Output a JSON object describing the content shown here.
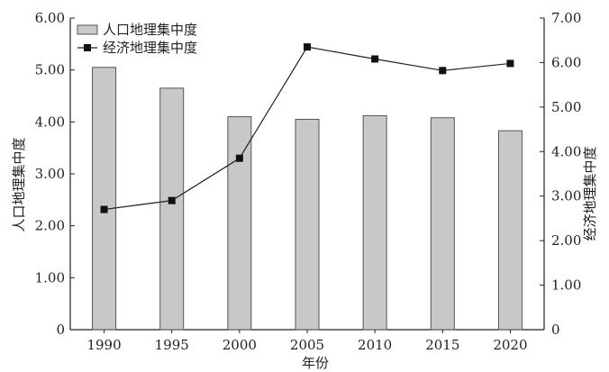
{
  "chart_data": {
    "type": "bar+line",
    "categories": [
      "1990",
      "1995",
      "2000",
      "2005",
      "2010",
      "2015",
      "2020"
    ],
    "series": [
      {
        "name": "人口地理集中度",
        "type": "bar",
        "axis": "left",
        "values": [
          5.05,
          4.65,
          4.1,
          4.05,
          4.12,
          4.08,
          3.83
        ]
      },
      {
        "name": "经济地理集中度",
        "type": "line",
        "axis": "right",
        "values": [
          2.7,
          2.9,
          3.85,
          6.35,
          6.08,
          5.82,
          5.98
        ]
      }
    ],
    "xlabel": "年份",
    "ylabel_left": "人口地理集中度",
    "ylabel_right": "经济地理集中度",
    "ylim_left": [
      0,
      6
    ],
    "ylim_right": [
      0,
      7
    ],
    "yticks_left": [
      "0",
      "1.00",
      "2.00",
      "3.00",
      "4.00",
      "5.00",
      "6.00"
    ],
    "yticks_right": [
      "0",
      "1.00",
      "2.00",
      "3.00",
      "4.00",
      "5.00",
      "6.00",
      "7.00"
    ],
    "grid": false,
    "legend": "top-left",
    "colors": {
      "bar_fill": "#c8c8c8",
      "bar_stroke": "#555555",
      "line": "#222222",
      "marker": "#111111"
    }
  }
}
